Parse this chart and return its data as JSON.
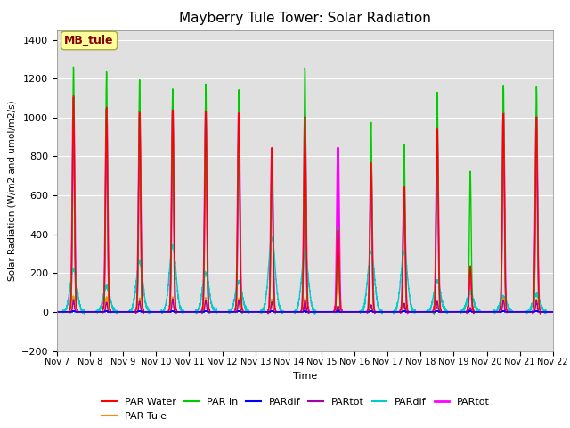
{
  "title": "Mayberry Tule Tower: Solar Radiation",
  "xlabel": "Time",
  "ylabel": "Solar Radiation (W/m2 and umol/m2/s)",
  "ylim": [
    -200,
    1450
  ],
  "yticks": [
    -200,
    0,
    200,
    400,
    600,
    800,
    1000,
    1200,
    1400
  ],
  "bg_color": "#e0e0e0",
  "xtick_labels": [
    "Nov 7",
    "Nov 8",
    "Nov 9",
    "Nov 10",
    "Nov 11",
    "Nov 12",
    "Nov 13",
    "Nov 14",
    "Nov 15",
    "Nov 16",
    "Nov 17",
    "Nov 18",
    "Nov 19",
    "Nov 20",
    "Nov 21",
    "Nov 22"
  ],
  "series": [
    {
      "label": "PAR Water",
      "color": "#ff0000",
      "lw": 1.0
    },
    {
      "label": "PAR Tule",
      "color": "#ff8800",
      "lw": 1.0
    },
    {
      "label": "PAR In",
      "color": "#00cc00",
      "lw": 1.0
    },
    {
      "label": "PARdif",
      "color": "#0000ff",
      "lw": 1.0
    },
    {
      "label": "PARtot",
      "color": "#aa00aa",
      "lw": 1.0
    },
    {
      "label": "PARdif",
      "color": "#00cccc",
      "lw": 1.0
    },
    {
      "label": "PARtot",
      "color": "#ff00ff",
      "lw": 1.5
    }
  ],
  "peaks": {
    "7": [
      1100,
      80,
      1260,
      5,
      60,
      220,
      1100
    ],
    "8": [
      1050,
      75,
      1230,
      5,
      50,
      130,
      1050
    ],
    "9": [
      1030,
      70,
      1200,
      5,
      55,
      260,
      1030
    ],
    "10": [
      1040,
      75,
      1150,
      5,
      65,
      340,
      1040
    ],
    "11": [
      1030,
      70,
      1170,
      5,
      60,
      200,
      1030
    ],
    "12": [
      1030,
      70,
      1140,
      5,
      55,
      155,
      1030
    ],
    "13": [
      845,
      65,
      820,
      5,
      50,
      380,
      845
    ],
    "14": [
      1010,
      70,
      1260,
      5,
      60,
      310,
      1010
    ],
    "15": [
      420,
      30,
      430,
      5,
      25,
      0,
      850
    ],
    "16": [
      760,
      35,
      970,
      5,
      35,
      310,
      760
    ],
    "17": [
      640,
      40,
      860,
      5,
      40,
      310,
      640
    ],
    "18": [
      940,
      55,
      1130,
      5,
      50,
      160,
      940
    ],
    "19": [
      230,
      20,
      720,
      5,
      20,
      100,
      230
    ],
    "20": [
      1020,
      70,
      1170,
      5,
      60,
      80,
      1020
    ],
    "21": [
      1000,
      65,
      1160,
      5,
      55,
      90,
      1000
    ]
  },
  "label_box": {
    "text": "MB_tule",
    "facecolor": "#ffff99",
    "edgecolor": "#aaaa44",
    "textcolor": "#880000",
    "fontsize": 9,
    "fontweight": "bold"
  }
}
